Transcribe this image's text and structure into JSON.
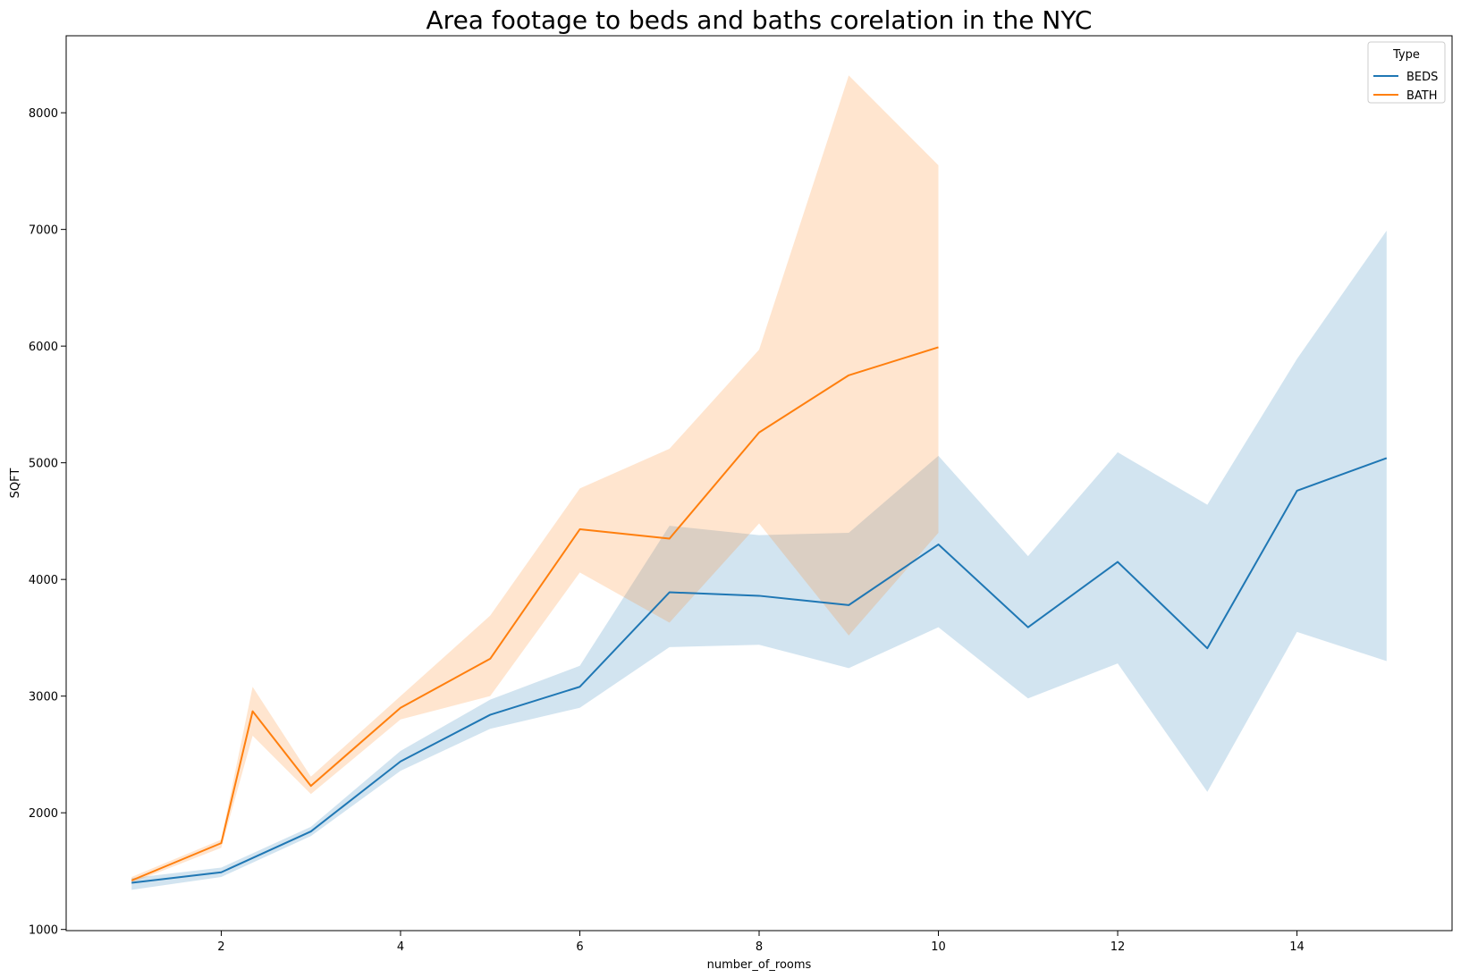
{
  "chart_data": {
    "type": "line",
    "title": "Area footage to beds and baths corelation in the NYC",
    "xlabel": "number_of_rooms",
    "ylabel": "SQFT",
    "xlim": [
      0.27,
      15.73
    ],
    "ylim": [
      990,
      8660
    ],
    "xticks": [
      2,
      4,
      6,
      8,
      10,
      12,
      14
    ],
    "yticks": [
      1000,
      2000,
      3000,
      4000,
      5000,
      6000,
      7000,
      8000
    ],
    "legend": {
      "title": "Type",
      "placement": "top-right"
    },
    "grid": false,
    "series": [
      {
        "name": "BEDS",
        "color": "#1f77b4",
        "x": [
          1,
          2,
          3,
          4,
          5,
          6,
          7,
          8,
          9,
          10,
          11,
          12,
          13,
          14,
          15
        ],
        "values": [
          1400,
          1490,
          1840,
          2440,
          2840,
          3080,
          3890,
          3860,
          3780,
          4300,
          3590,
          4150,
          3410,
          4760,
          5040
        ],
        "ci_lower": [
          1340,
          1450,
          1800,
          2360,
          2720,
          2900,
          3420,
          3440,
          3240,
          3590,
          2980,
          3280,
          2180,
          3550,
          3300
        ],
        "ci_upper": [
          1440,
          1530,
          1880,
          2530,
          2970,
          3260,
          4460,
          4380,
          4400,
          5060,
          4200,
          5090,
          4640,
          5890,
          6990
        ]
      },
      {
        "name": "BATH",
        "color": "#ff7f0e",
        "x": [
          1,
          2,
          2.35,
          3,
          4,
          5,
          6,
          7,
          8,
          9,
          10
        ],
        "values": [
          1420,
          1740,
          2870,
          2230,
          2900,
          3320,
          4430,
          4350,
          5260,
          5750,
          5990
        ],
        "ci_lower": [
          1400,
          1700,
          2660,
          2160,
          2800,
          3000,
          4060,
          3630,
          4480,
          3520,
          4400
        ],
        "ci_upper": [
          1450,
          1770,
          3080,
          2310,
          3000,
          3690,
          4780,
          5120,
          5970,
          8320,
          7550
        ]
      }
    ]
  }
}
